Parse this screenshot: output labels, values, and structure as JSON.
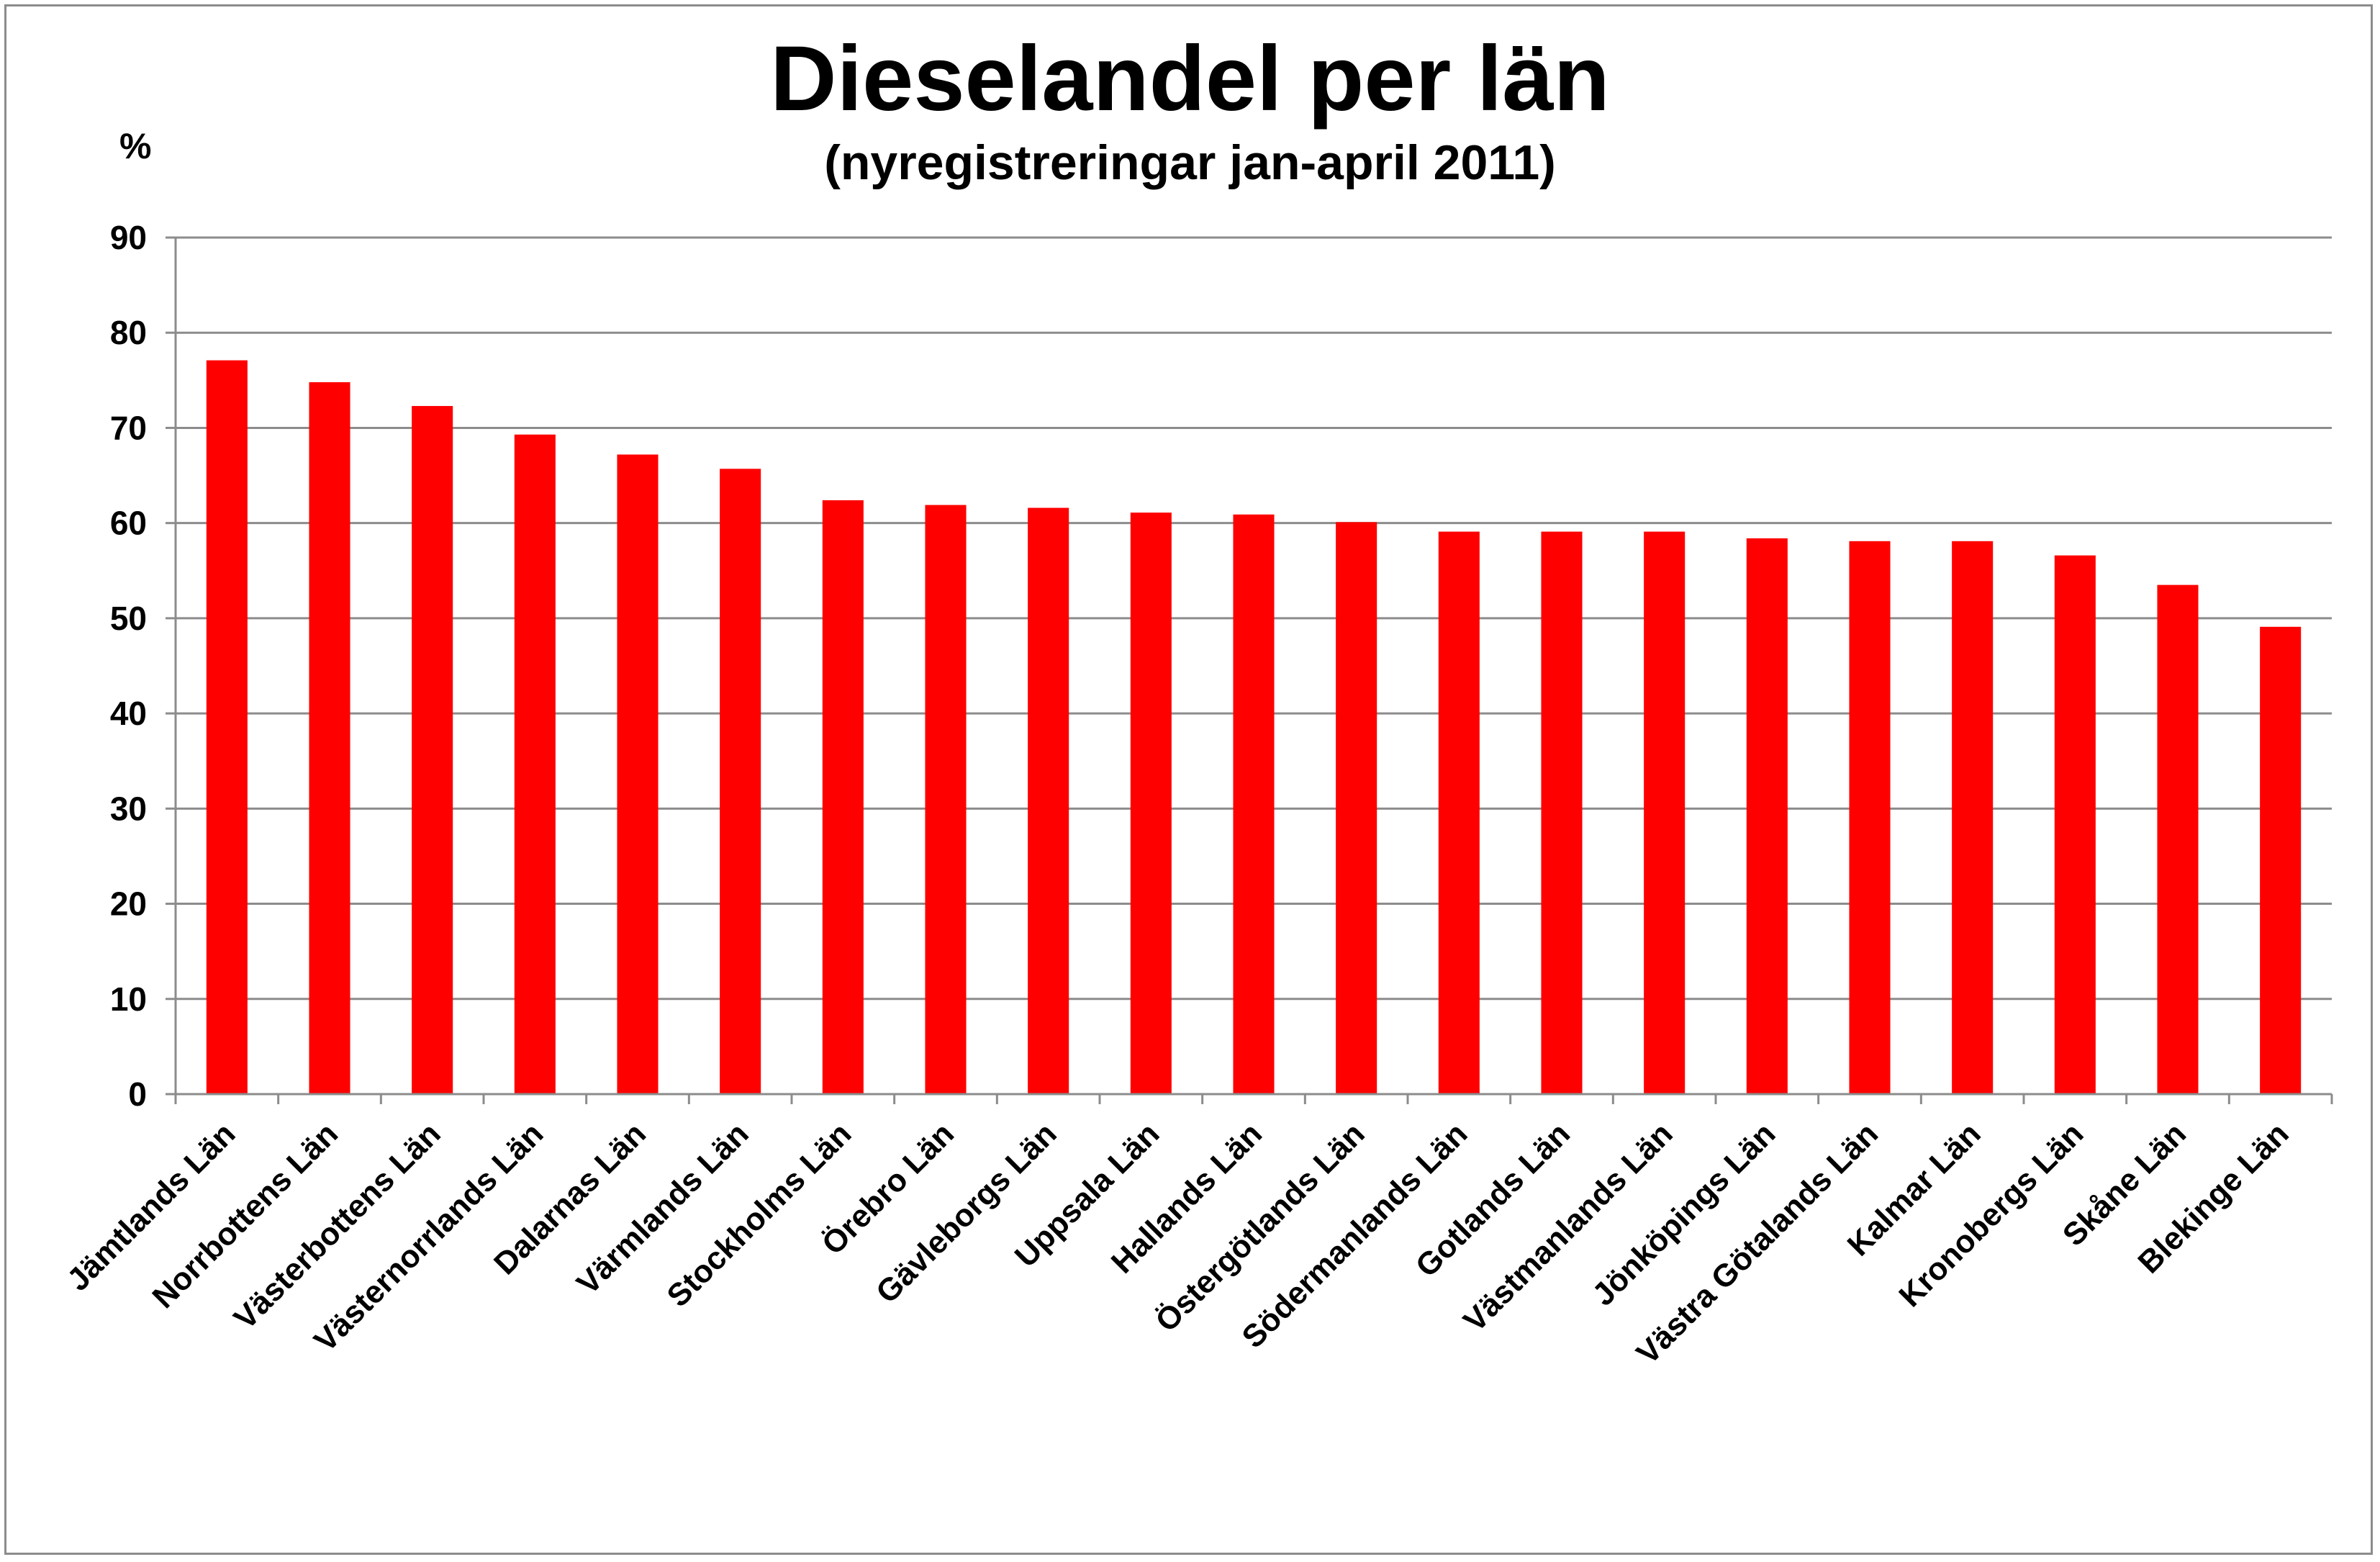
{
  "chart_data": {
    "type": "bar",
    "title": "Dieselandel per län",
    "subtitle": "(nyregistreringar jan-april 2011)",
    "ylabel": "%",
    "xlabel": "",
    "ylim": [
      0,
      90
    ],
    "yticks": [
      0,
      10,
      20,
      30,
      40,
      50,
      60,
      70,
      80,
      90
    ],
    "grid": true,
    "legend": "none",
    "bar_color": "#ff0000",
    "categories": [
      "Jämtlands Län",
      "Norrbottens Län",
      "Västerbottens Län",
      "Västernorrlands Län",
      "Dalarnas Län",
      "Värmlands Län",
      "Stockholms Län",
      "Örebro Län",
      "Gävleborgs Län",
      "Uppsala Län",
      "Hallands Län",
      "Östergötlands Län",
      "Södermanlands Län",
      "Gotlands Län",
      "Västmanlands Län",
      "Jönköpings Län",
      "Västra Götalands Län",
      "Kalmar Län",
      "Kronobergs Län",
      "Skåne Län",
      "Blekinge Län"
    ],
    "values": [
      77.1,
      74.8,
      72.3,
      69.3,
      67.2,
      65.7,
      62.4,
      61.9,
      61.6,
      61.1,
      60.9,
      60.1,
      59.1,
      59.1,
      59.1,
      58.4,
      58.1,
      58.1,
      56.6,
      53.5,
      49.1
    ]
  }
}
